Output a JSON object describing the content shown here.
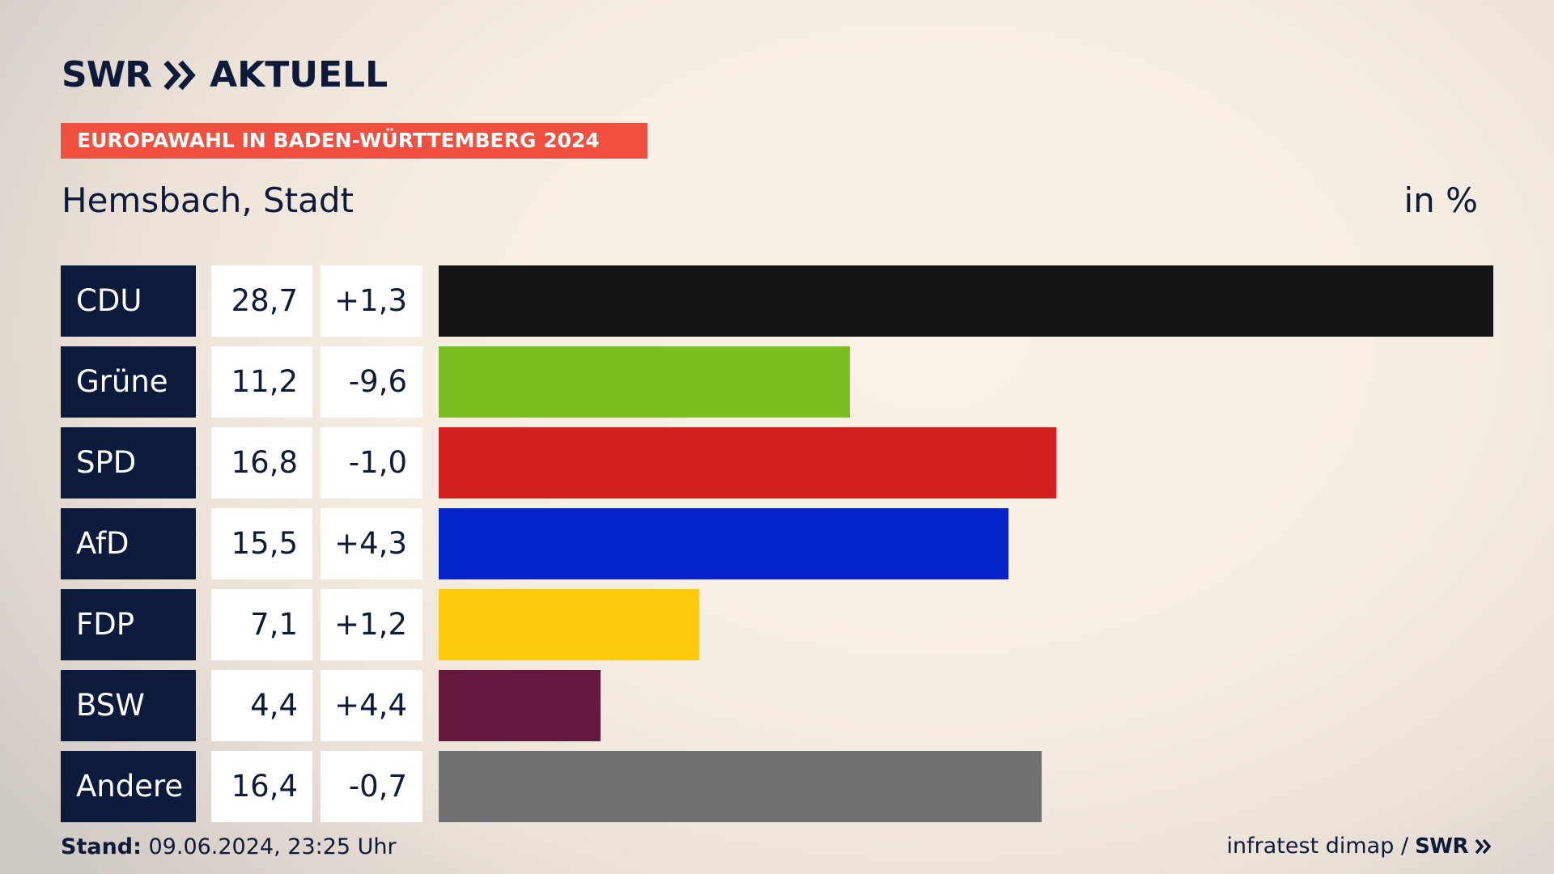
{
  "header": {
    "logo_text": "SWR",
    "logo_icon": "double-chevron-right-icon",
    "brand_name": "AKTUELL",
    "banner": "EUROPAWAHL IN BADEN-WÜRTTEMBERG 2024",
    "location": "Hemsbach, Stadt",
    "unit": "in %"
  },
  "chart_data": {
    "type": "bar",
    "orientation": "horizontal",
    "categories": [
      "CDU",
      "Grüne",
      "SPD",
      "AfD",
      "FDP",
      "BSW",
      "Andere"
    ],
    "values": [
      28.7,
      11.2,
      16.8,
      15.5,
      7.1,
      4.4,
      16.4
    ],
    "value_labels": [
      "28,7",
      "11,2",
      "16,8",
      "15,5",
      "7,1",
      "4,4",
      "16,4"
    ],
    "change_labels": [
      "+1,3",
      "-9,6",
      "-1,0",
      "+4,3",
      "+1,2",
      "+4,4",
      "-0,7"
    ],
    "changes": [
      1.3,
      -9.6,
      -1.0,
      4.3,
      1.2,
      4.4,
      -0.7
    ],
    "colors": [
      "#151515",
      "#79bd1e",
      "#d61f1f",
      "#0223c9",
      "#fecb0a",
      "#67183f",
      "#707173"
    ],
    "title": "Hemsbach, Stadt",
    "unit": "in %",
    "xlim": [
      0,
      28.7
    ],
    "grid": false,
    "legend": "none"
  },
  "footer": {
    "stand_label": "Stand:",
    "stand_value": " 09.06.2024, 23:25 Uhr",
    "source": "infratest dimap /",
    "source_logo": "SWR",
    "source_logo_icon": "double-chevron-right-icon"
  }
}
